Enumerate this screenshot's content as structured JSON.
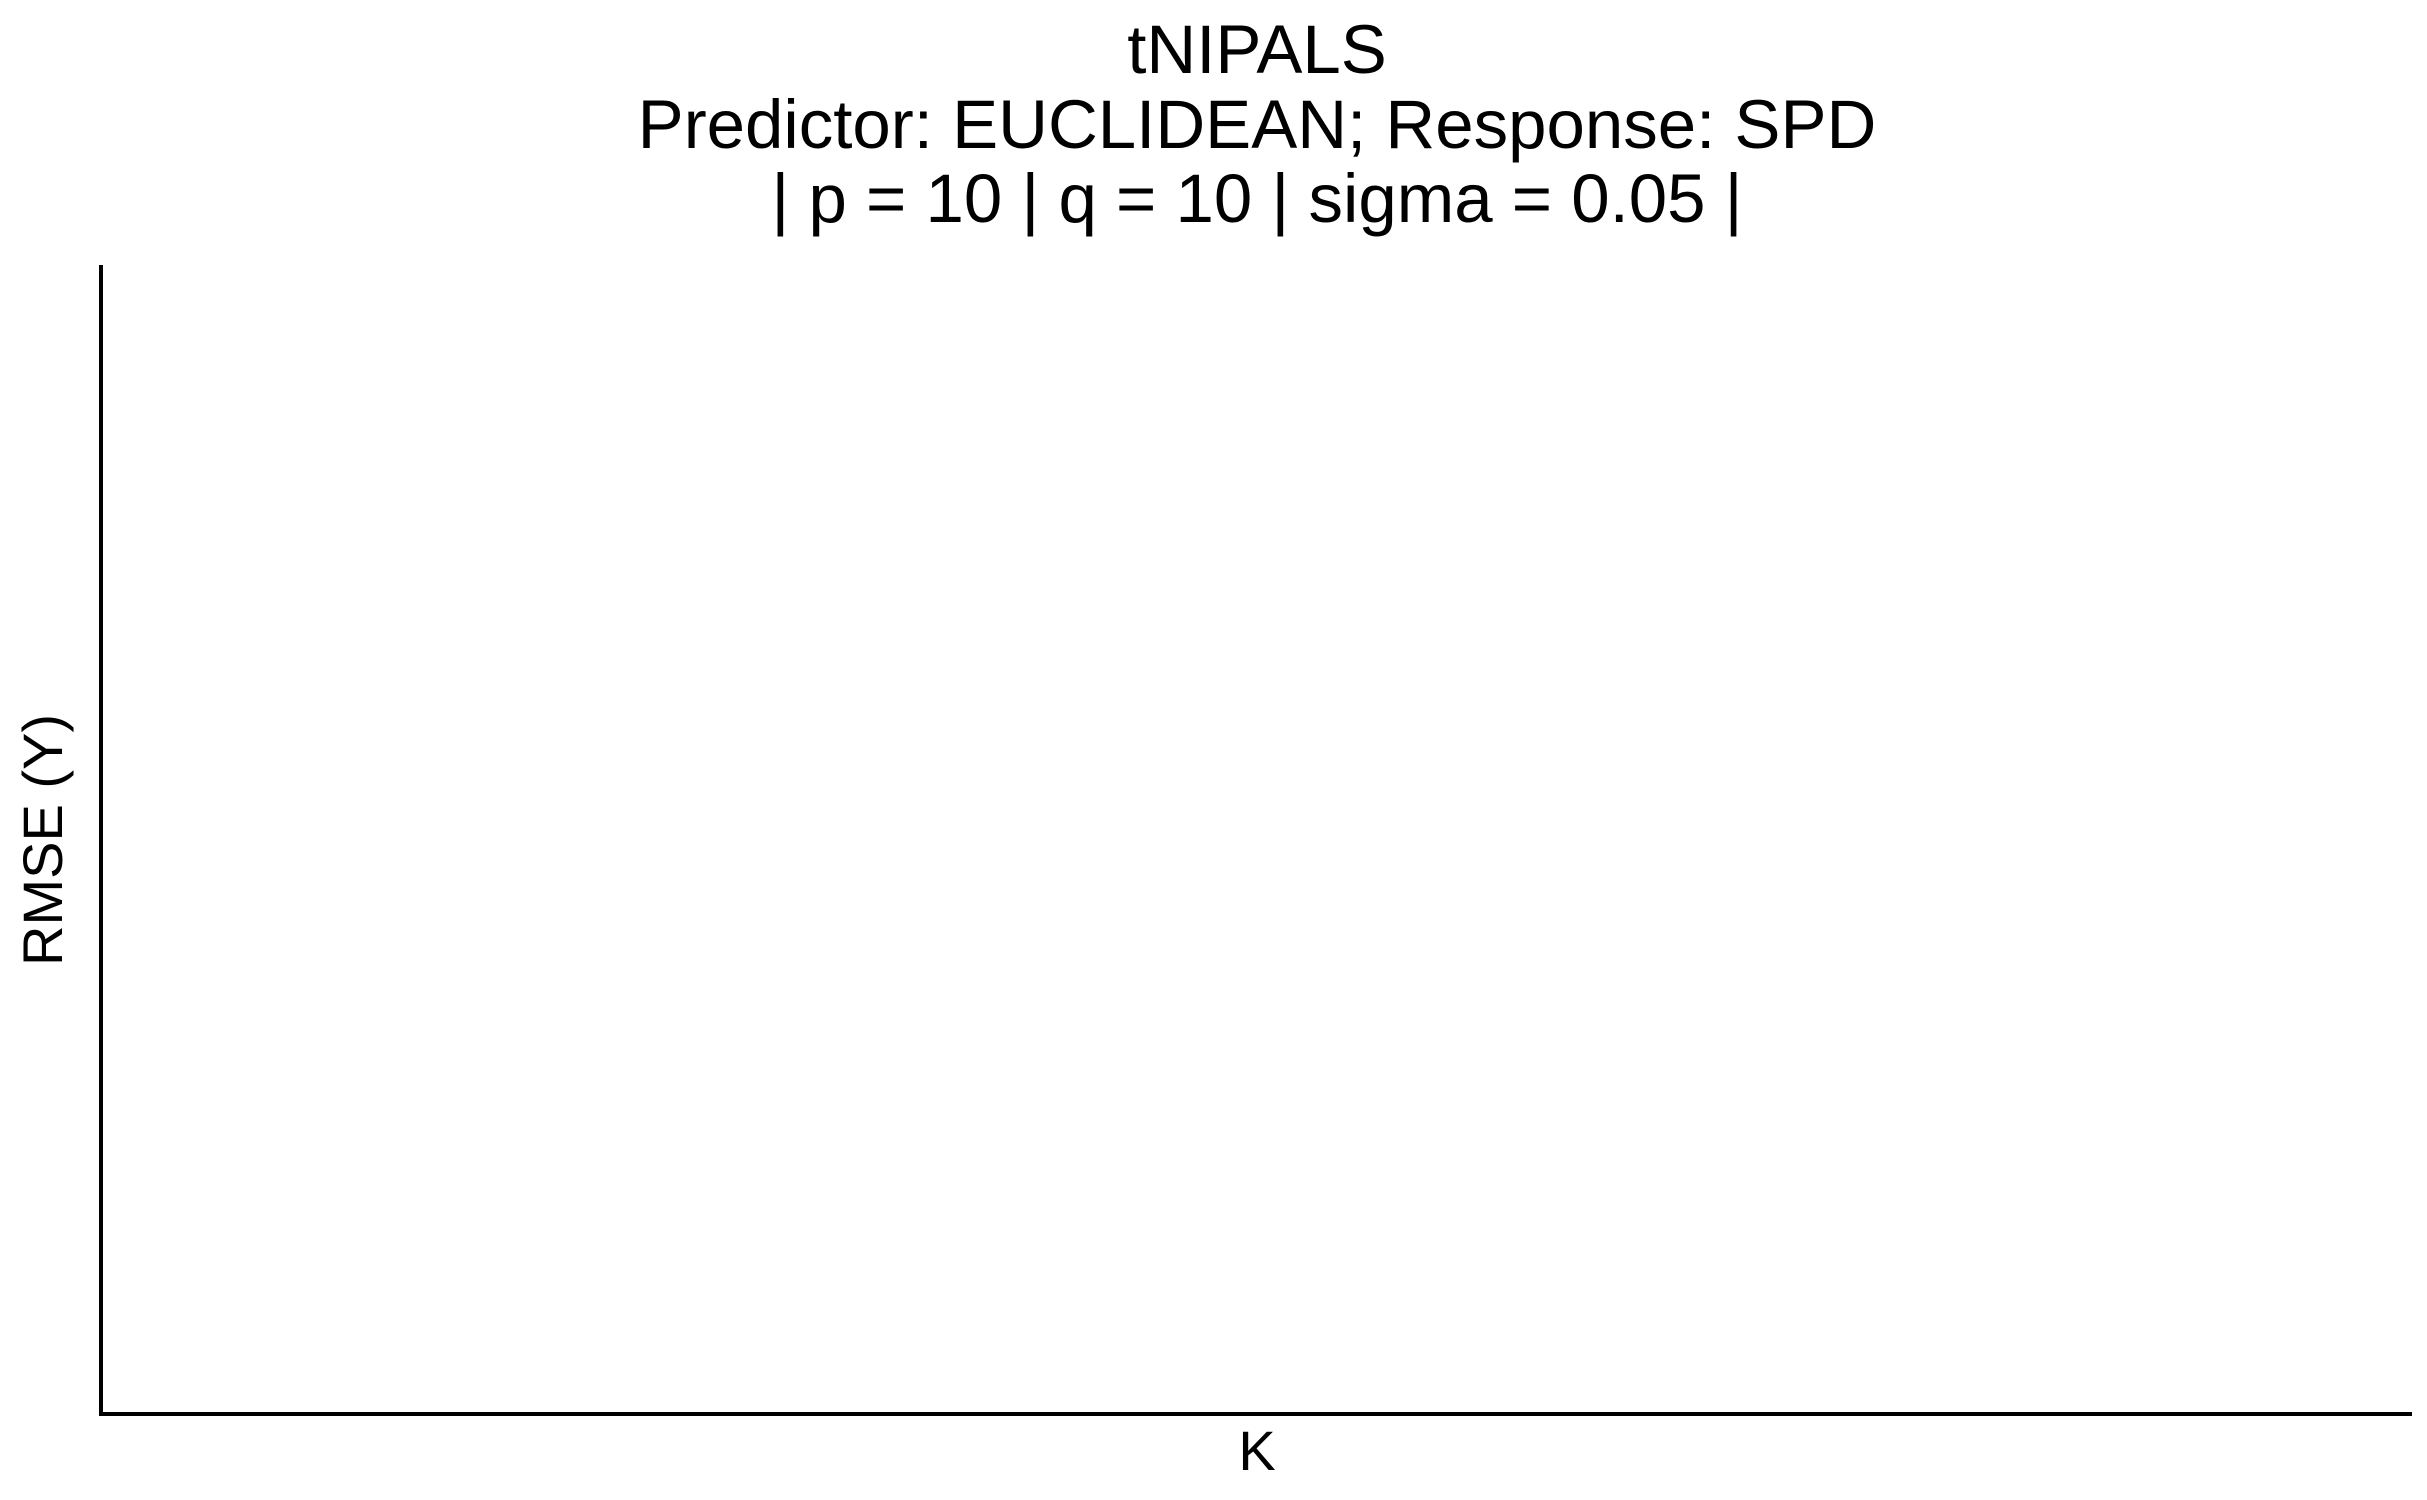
{
  "chart_data": {
    "type": "line",
    "title": "tNIPALS",
    "subtitle_lines": [
      "Predictor: EUCLIDEAN; Response: SPD",
      "| p = 10 | q = 10 | sigma = 0.05 |"
    ],
    "xlabel": "K",
    "ylabel": "RMSE (Y)",
    "series": [],
    "grid": false,
    "legend": "none"
  }
}
